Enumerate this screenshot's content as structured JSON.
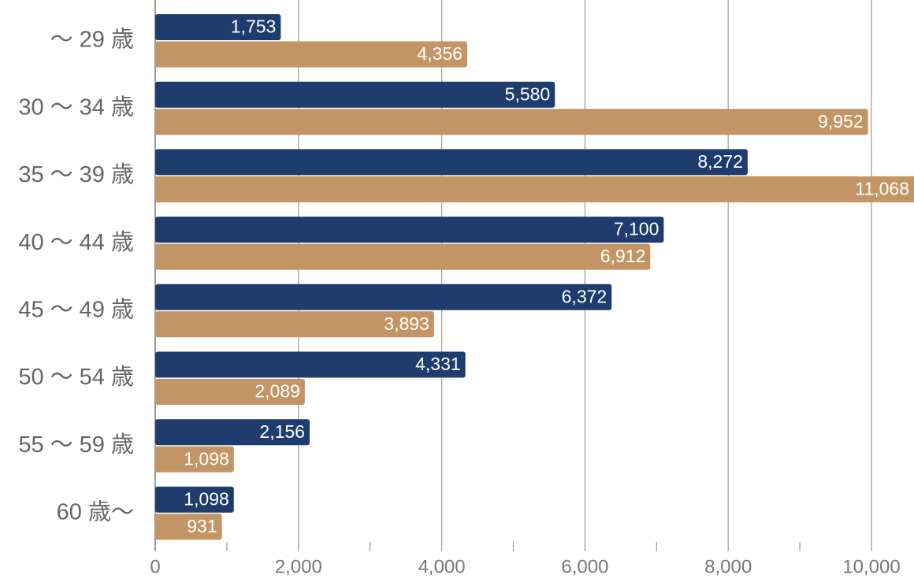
{
  "chart_data": {
    "type": "barh",
    "categories": [
      "～ 29 歳",
      "30 ～ 34 歳",
      "35 ～ 39 歳",
      "40 ～ 44 歳",
      "45 ～ 49 歳",
      "50 ～ 54 歳",
      "55 ～ 59 歳",
      "60 歳～"
    ],
    "series": [
      {
        "color": "#1e3c6d",
        "values": [
          1753,
          5580,
          8272,
          7100,
          6372,
          4331,
          2156,
          1098
        ],
        "value_labels": [
          "1,753",
          "5,580",
          "8,272",
          "7,100",
          "6,372",
          "4,331",
          "2,156",
          "1,098"
        ]
      },
      {
        "color": "#c39565",
        "values": [
          4356,
          9952,
          11068,
          6912,
          3893,
          2089,
          1098,
          931
        ],
        "value_labels": [
          "4,356",
          "9,952",
          "11,068",
          "6,912",
          "3,893",
          "2,089",
          "1,098",
          "931"
        ]
      }
    ],
    "xlim": [
      0,
      10000
    ],
    "xticks": [
      0,
      {
        "value": 2000,
        "label": "2,000"
      },
      {
        "value": 4000,
        "label": "4,000"
      },
      {
        "value": 6000,
        "label": "6,000"
      },
      {
        "value": 8000,
        "label": "8,000"
      },
      {
        "value": 10000,
        "label": "10,000"
      }
    ],
    "minor_xticks": [
      1000,
      3000,
      5000,
      7000,
      9000
    ],
    "grid": true
  }
}
